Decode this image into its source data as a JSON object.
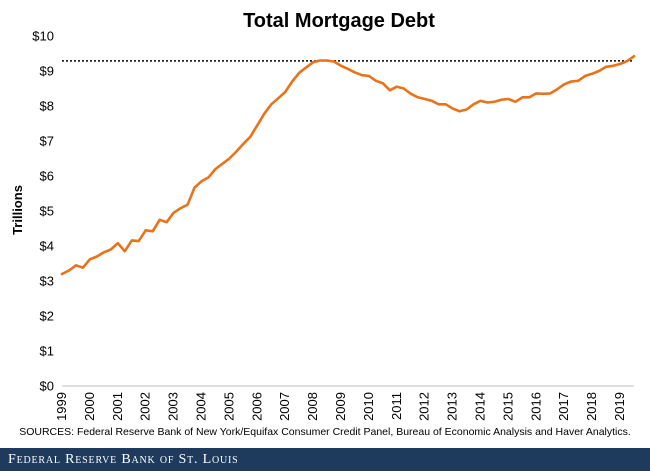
{
  "chart_data": {
    "type": "line",
    "title": "Total Mortgage Debt",
    "ylabel": "Trillions",
    "xlabel": "",
    "ylim": [
      0,
      10
    ],
    "y_ticks": [
      "$0",
      "$1",
      "$2",
      "$3",
      "$4",
      "$5",
      "$6",
      "$7",
      "$8",
      "$9",
      "$10"
    ],
    "x_ticks": [
      "1999",
      "2000",
      "2001",
      "2002",
      "2003",
      "2004",
      "2005",
      "2006",
      "2007",
      "2008",
      "2009",
      "2010",
      "2011",
      "2012",
      "2013",
      "2014",
      "2015",
      "2016",
      "2017",
      "2018",
      "2019"
    ],
    "x_range": [
      1999.0,
      2019.5
    ],
    "reference_line": {
      "y": 9.29,
      "style": "dotted"
    },
    "grid": false,
    "legend": "none",
    "series": [
      {
        "color": "#e8731a",
        "x": [
          1999.0,
          1999.25,
          1999.5,
          1999.75,
          2000.0,
          2000.25,
          2000.5,
          2000.75,
          2001.0,
          2001.25,
          2001.5,
          2001.75,
          2002.0,
          2002.25,
          2002.5,
          2002.75,
          2003.0,
          2003.25,
          2003.5,
          2003.75,
          2004.0,
          2004.25,
          2004.5,
          2004.75,
          2005.0,
          2005.25,
          2005.5,
          2005.75,
          2006.0,
          2006.25,
          2006.5,
          2006.75,
          2007.0,
          2007.25,
          2007.5,
          2007.75,
          2008.0,
          2008.25,
          2008.5,
          2008.75,
          2009.0,
          2009.25,
          2009.5,
          2009.75,
          2010.0,
          2010.25,
          2010.5,
          2010.75,
          2011.0,
          2011.25,
          2011.5,
          2011.75,
          2012.0,
          2012.25,
          2012.5,
          2012.75,
          2013.0,
          2013.25,
          2013.5,
          2013.75,
          2014.0,
          2014.25,
          2014.5,
          2014.75,
          2015.0,
          2015.25,
          2015.5,
          2015.75,
          2016.0,
          2016.25,
          2016.5,
          2016.75,
          2017.0,
          2017.25,
          2017.5,
          2017.75,
          2018.0,
          2018.25,
          2018.5,
          2018.75,
          2019.0,
          2019.25,
          2019.5
        ],
        "y": [
          3.2,
          3.3,
          3.45,
          3.38,
          3.62,
          3.7,
          3.82,
          3.9,
          4.08,
          3.85,
          4.16,
          4.14,
          4.45,
          4.42,
          4.75,
          4.68,
          4.95,
          5.08,
          5.18,
          5.67,
          5.85,
          5.96,
          6.2,
          6.35,
          6.5,
          6.7,
          6.92,
          7.12,
          7.45,
          7.78,
          8.05,
          8.22,
          8.4,
          8.7,
          8.95,
          9.1,
          9.25,
          9.3,
          9.3,
          9.27,
          9.15,
          9.06,
          8.96,
          8.88,
          8.86,
          8.72,
          8.65,
          8.45,
          8.55,
          8.5,
          8.35,
          8.25,
          8.2,
          8.15,
          8.05,
          8.05,
          7.93,
          7.85,
          7.9,
          8.05,
          8.15,
          8.1,
          8.12,
          8.18,
          8.2,
          8.12,
          8.25,
          8.25,
          8.36,
          8.35,
          8.36,
          8.48,
          8.62,
          8.7,
          8.72,
          8.86,
          8.92,
          9.0,
          9.12,
          9.15,
          9.2,
          9.28,
          9.42
        ]
      }
    ]
  },
  "sources_text": "SOURCES: Federal Reserve Bank of New York/Equifax Consumer Credit Panel, Bureau of Economic Analysis and Haver Analytics.",
  "footer": {
    "text": "Federal Reserve Bank of St. Louis",
    "background": "#1e3a5c"
  }
}
